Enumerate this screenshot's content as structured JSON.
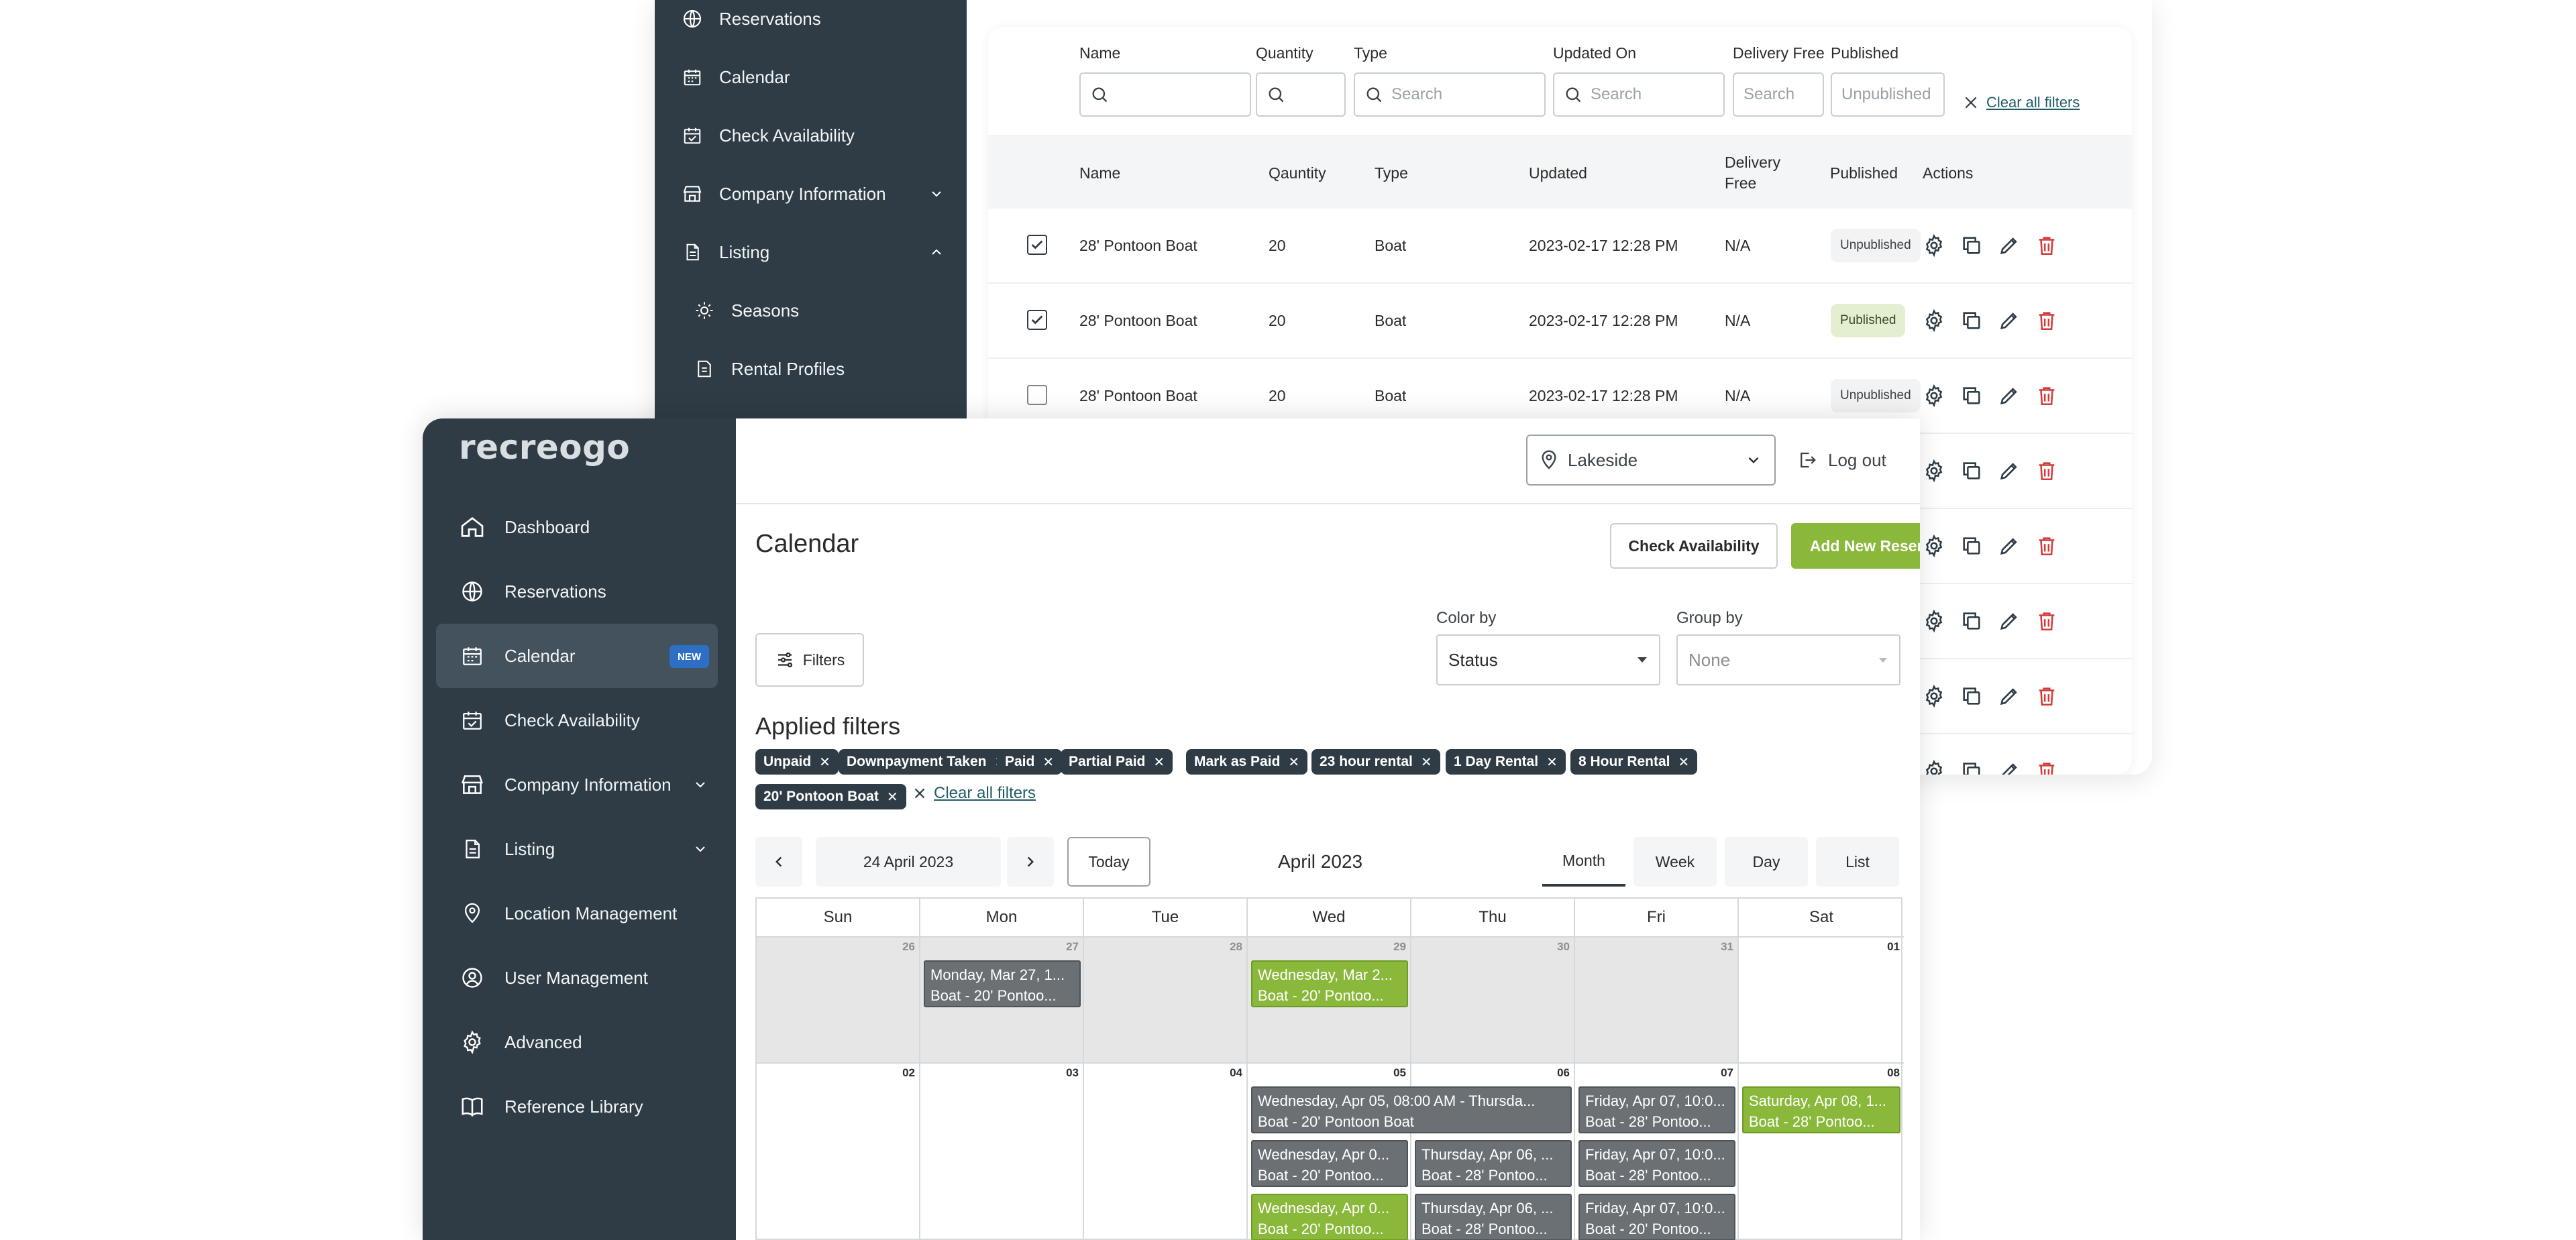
{
  "back": {
    "sidebar": [
      {
        "label": "Reservations",
        "icon": "globe-icon"
      },
      {
        "label": "Calendar",
        "icon": "calendar-icon"
      },
      {
        "label": "Check Availability",
        "icon": "calendar-check-icon"
      },
      {
        "label": "Company Information",
        "icon": "store-icon"
      },
      {
        "label": "Listing",
        "icon": "document-icon"
      },
      {
        "label": "Seasons",
        "icon": "sun-icon"
      },
      {
        "label": "Rental Profiles",
        "icon": "profile-doc-icon"
      }
    ],
    "filters": {
      "name_label": "Name",
      "quantity_label": "Quantity",
      "type_label": "Type",
      "type_placeholder": "Search",
      "updated_label": "Updated On",
      "updated_placeholder": "Search",
      "delivery_label": "Delivery Free",
      "delivery_placeholder": "Search",
      "published_label": "Published",
      "published_placeholder": "Unpublished",
      "clear_all": "Clear all filters"
    },
    "table": {
      "headers": {
        "name": "Name",
        "quantity": "Qauntity",
        "type": "Type",
        "updated": "Updated",
        "delivery_line1": "Delivery",
        "delivery_line2": "Free",
        "published": "Published",
        "actions": "Actions"
      },
      "rows": [
        {
          "name": "28' Pontoon Boat",
          "quantity": "20",
          "type": "Boat",
          "updated": "2023-02-17 12:28 PM",
          "delivery": "N/A",
          "published": "Unpublished",
          "checked": true
        },
        {
          "name": "28' Pontoon Boat",
          "quantity": "20",
          "type": "Boat",
          "updated": "2023-02-17 12:28 PM",
          "delivery": "N/A",
          "published": "Published",
          "checked": true
        },
        {
          "name": "28' Pontoon Boat",
          "quantity": "20",
          "type": "Boat",
          "updated": "2023-02-17 12:28 PM",
          "delivery": "N/A",
          "published": "Unpublished",
          "checked": false
        }
      ]
    }
  },
  "front": {
    "logo": "recreogo",
    "sidebar": [
      {
        "label": "Dashboard",
        "icon": "home-icon"
      },
      {
        "label": "Reservations",
        "icon": "globe-icon"
      },
      {
        "label": "Calendar",
        "icon": "calendar-icon",
        "badge": "NEW"
      },
      {
        "label": "Check Availability",
        "icon": "calendar-check-icon"
      },
      {
        "label": "Company Information",
        "icon": "store-icon"
      },
      {
        "label": "Listing",
        "icon": "document-icon"
      },
      {
        "label": "Location Management",
        "icon": "location-pin-icon"
      },
      {
        "label": "User Management",
        "icon": "user-circle-icon"
      },
      {
        "label": "Advanced",
        "icon": "gear-icon"
      },
      {
        "label": "Reference Library",
        "icon": "book-icon"
      }
    ],
    "topbar": {
      "location": "Lakeside",
      "logout": "Log out"
    },
    "page_title": "Calendar",
    "buttons": {
      "check_availability": "Check Availability",
      "add_reservation": "Add New Reservation",
      "filters": "Filters",
      "today": "Today",
      "date": "24 April 2023"
    },
    "color_by": {
      "label": "Color by",
      "value": "Status"
    },
    "group_by": {
      "label": "Group by",
      "value": "None"
    },
    "applied_filters": {
      "title": "Applied filters",
      "chips": [
        "Unpaid",
        "Downpayment Taken",
        "Paid",
        "Partial Paid",
        "Mark as Paid",
        "23 hour rental",
        "1 Day Rental",
        "8 Hour Rental",
        "20' Pontoon Boat"
      ],
      "clear_all": "Clear all filters"
    },
    "calendar": {
      "month_label": "April 2023",
      "views": [
        "Month",
        "Week",
        "Day",
        "List"
      ],
      "days": [
        "Sun",
        "Mon",
        "Tue",
        "Wed",
        "Thu",
        "Fri",
        "Sat"
      ],
      "week1": [
        "26",
        "27",
        "28",
        "29",
        "30",
        "31",
        "01"
      ],
      "week2": [
        "02",
        "03",
        "04",
        "05",
        "06",
        "07",
        "08"
      ],
      "events": [
        {
          "line1": "Monday, Mar 27, 1...",
          "line2": "Boat - 20' Pontoo...",
          "color": "gray"
        },
        {
          "line1": "Wednesday, Mar 2...",
          "line2": "Boat - 20' Pontoo...",
          "color": "green"
        },
        {
          "line1": "Wednesday, Apr 05, 08:00 AM - Thursda...",
          "line2": "Boat - 20' Pontoon Boat",
          "color": "gray"
        },
        {
          "line1": "Friday, Apr 07, 10:0...",
          "line2": "Boat - 28' Pontoo...",
          "color": "gray"
        },
        {
          "line1": "Saturday, Apr 08, 1...",
          "line2": "Boat - 28' Pontoo...",
          "color": "green"
        },
        {
          "line1": "Wednesday, Apr 0...",
          "line2": "Boat - 20' Pontoo...",
          "color": "gray"
        },
        {
          "line1": "Thursday, Apr 06, ...",
          "line2": "Boat - 28' Pontoo...",
          "color": "gray"
        },
        {
          "line1": "Friday, Apr 07, 10:0...",
          "line2": "Boat - 28' Pontoo...",
          "color": "gray"
        },
        {
          "line1": "Wednesday, Apr 0...",
          "line2": "Boat - 20' Pontoo...",
          "color": "green"
        },
        {
          "line1": "Thursday, Apr 06, ...",
          "line2": "Boat - 28' Pontoo...",
          "color": "gray"
        },
        {
          "line1": "Friday, Apr 07, 10:0...",
          "line2": "Boat - 20' Pontoo...",
          "color": "gray"
        }
      ]
    }
  },
  "colors": {
    "sidebar": "#2f3c46",
    "accent_green": "#8ab83a",
    "badge_blue": "#2c6fc4",
    "delete_red": "#d23b3b",
    "link_teal": "#1f5c66"
  }
}
